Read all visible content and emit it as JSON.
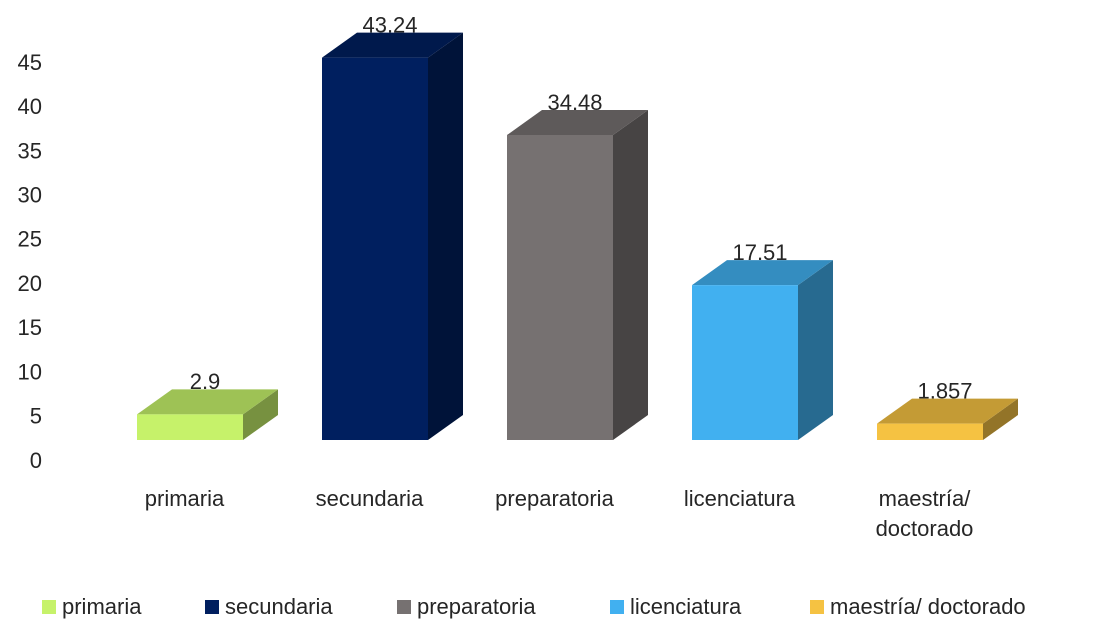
{
  "chart_data": {
    "type": "bar3d",
    "categories": [
      "primaria",
      "secundaria",
      "preparatoria",
      "licenciatura",
      "maestría/ doctorado"
    ],
    "values": [
      2.9,
      43.24,
      34.48,
      17.51,
      1.857
    ],
    "colors": [
      "#c6f26a",
      "#001f5f",
      "#767171",
      "#41b0f0",
      "#f5c242"
    ],
    "ylim": [
      0,
      45
    ],
    "yticks": [
      0,
      5,
      10,
      15,
      20,
      25,
      30,
      35,
      40,
      45
    ],
    "grid": false,
    "legend": "bottom"
  }
}
